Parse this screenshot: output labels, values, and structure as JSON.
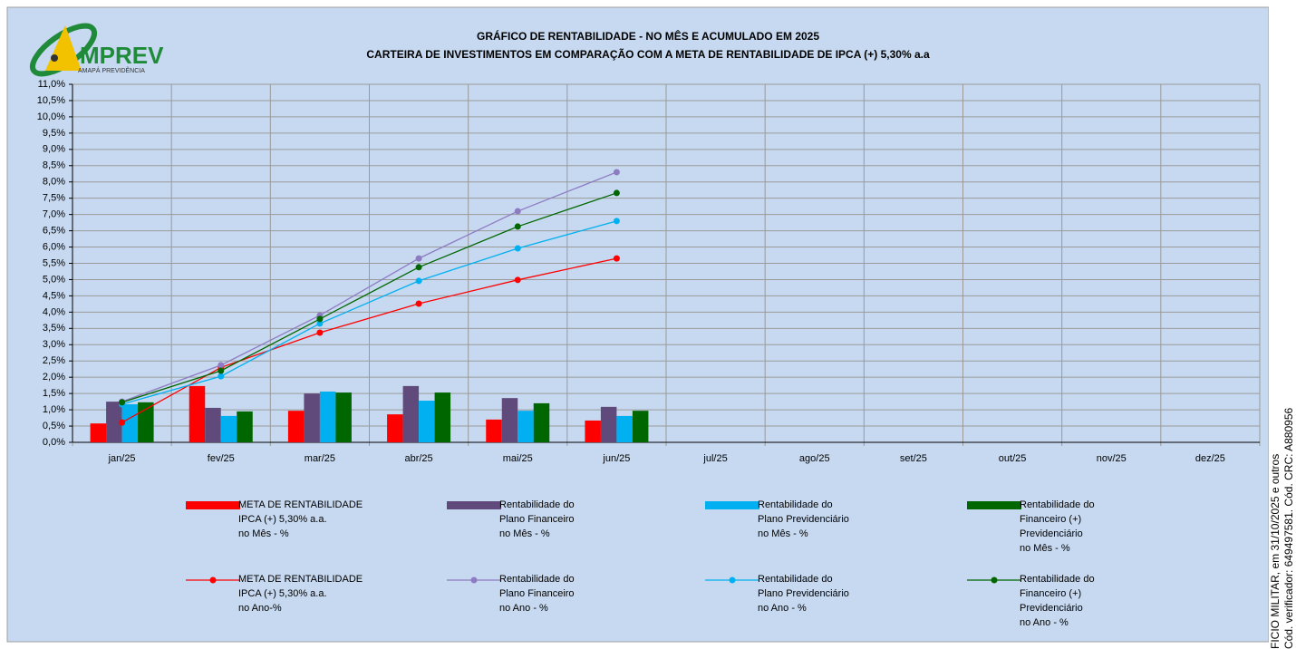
{
  "logo": {
    "name": "MPREV",
    "subtitle": "AMAPÁ PREVIDÊNCIA"
  },
  "side_note": [
    "FICIO MILITAR, em 31/10/2025 e outros",
    "Cód. verificador: 649497581. Cód. CRC: A880956"
  ],
  "chart_data": {
    "type": "combo",
    "title": "GRÁFICO DE RENTABILIDADE - NO MÊS E ACUMULADO EM 2025",
    "subtitle": "CARTEIRA DE INVESTIMENTOS EM COMPARAÇÃO COM A META DE RENTABILIDADE DE IPCA (+) 5,30% a.a",
    "categories": [
      "jan/25",
      "fev/25",
      "mar/25",
      "abr/25",
      "mai/25",
      "jun/25",
      "jul/25",
      "ago/25",
      "set/25",
      "out/25",
      "nov/25",
      "dez/25"
    ],
    "ylim": [
      0,
      11
    ],
    "yticks": [
      {
        "value": 0,
        "label": "0,0%"
      },
      {
        "value": 0.5,
        "label": "0,5%"
      },
      {
        "value": 1,
        "label": "1,0%"
      },
      {
        "value": 1.5,
        "label": "1,5%"
      },
      {
        "value": 2,
        "label": "2,0%"
      },
      {
        "value": 2.5,
        "label": "2,5%"
      },
      {
        "value": 3,
        "label": "3,0%"
      },
      {
        "value": 3.5,
        "label": "3,5%"
      },
      {
        "value": 4,
        "label": "4,0%"
      },
      {
        "value": 4.5,
        "label": "4,5%"
      },
      {
        "value": 5,
        "label": "5,0%"
      },
      {
        "value": 5.5,
        "label": "5,5%"
      },
      {
        "value": 6,
        "label": "6,0%"
      },
      {
        "value": 6.5,
        "label": "6,5%"
      },
      {
        "value": 7,
        "label": "7,0%"
      },
      {
        "value": 7.5,
        "label": "7,5%"
      },
      {
        "value": 8,
        "label": "8,0%"
      },
      {
        "value": 8.5,
        "label": "8,5%"
      },
      {
        "value": 9,
        "label": "9,0%"
      },
      {
        "value": 9.5,
        "label": "9,5%"
      },
      {
        "value": 10,
        "label": "10,0%"
      },
      {
        "value": 10.5,
        "label": "10,5%"
      },
      {
        "value": 11,
        "label": "11,0%"
      }
    ],
    "grid": true,
    "series": [
      {
        "name": "META DE RENTABILIDADE\nIPCA (+) 5,30% a.a.\nno Mês - %",
        "type": "bar",
        "color": "#ff0000",
        "values": [
          0.58,
          1.73,
          0.97,
          0.86,
          0.7,
          0.67,
          null,
          null,
          null,
          null,
          null,
          null
        ]
      },
      {
        "name": "Rentabilidade do\nPlano Financeiro\nno Mês - %",
        "type": "bar",
        "color": "#604a7b",
        "values": [
          1.25,
          1.06,
          1.5,
          1.73,
          1.36,
          1.09,
          null,
          null,
          null,
          null,
          null,
          null
        ]
      },
      {
        "name": "Rentabilidade do\nPlano Previdenciário\nno Mês - %",
        "type": "bar",
        "color": "#00b0f0",
        "values": [
          1.17,
          0.81,
          1.56,
          1.28,
          0.97,
          0.81,
          null,
          null,
          null,
          null,
          null,
          null
        ]
      },
      {
        "name": "Rentabilidade do\nFinanceiro (+)\nPrevidenciário\nno Mês - %",
        "type": "bar",
        "color": "#006600",
        "values": [
          1.23,
          0.95,
          1.53,
          1.53,
          1.2,
          0.97,
          null,
          null,
          null,
          null,
          null,
          null
        ]
      },
      {
        "name": "META DE RENTABILIDADE\nIPCA (+) 5,30% a.a.\nno Ano-%",
        "type": "line",
        "color": "#ff0000",
        "values": [
          0.61,
          2.3,
          3.37,
          4.26,
          4.99,
          5.65,
          null,
          null,
          null,
          null,
          null,
          null
        ]
      },
      {
        "name": "Rentabilidade do\nPlano Financeiro\nno Ano - %",
        "type": "line",
        "color": "#8e7cc3",
        "values": [
          1.25,
          2.37,
          3.9,
          5.65,
          7.1,
          8.3,
          null,
          null,
          null,
          null,
          null,
          null
        ]
      },
      {
        "name": "Rentabilidade do\nPlano Previdenciário\nno Ano - %",
        "type": "line",
        "color": "#00b0f0",
        "values": [
          1.17,
          2.03,
          3.65,
          4.96,
          5.96,
          6.8,
          null,
          null,
          null,
          null,
          null,
          null
        ]
      },
      {
        "name": "Rentabilidade do\nFinanceiro (+)\nPrevidenciário\nno Ano - %",
        "type": "line",
        "color": "#006600",
        "values": [
          1.23,
          2.2,
          3.79,
          5.38,
          6.63,
          7.66,
          null,
          null,
          null,
          null,
          null,
          null
        ]
      }
    ]
  }
}
